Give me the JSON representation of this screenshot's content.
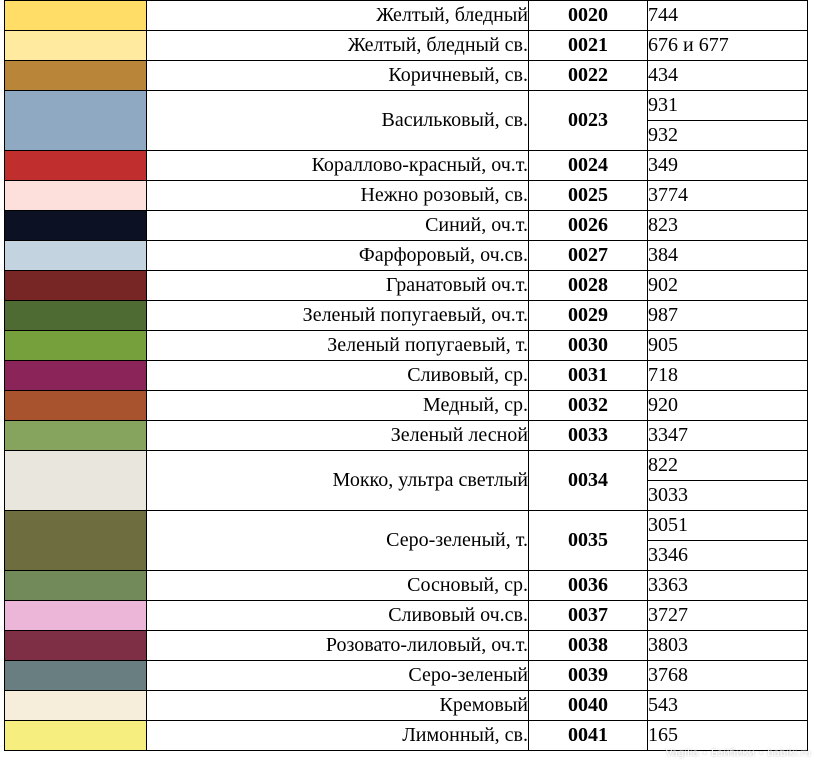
{
  "rows": [
    {
      "name": "Желтый, бледный",
      "code": "0020",
      "dmc": [
        "744"
      ],
      "color": "#ffdd66"
    },
    {
      "name": "Желтый, бледный св.",
      "code": "0021",
      "dmc": [
        "676 и 677"
      ],
      "color": "#ffeaa0"
    },
    {
      "name": "Коричневый, св.",
      "code": "0022",
      "dmc": [
        "434"
      ],
      "color": "#b88539"
    },
    {
      "name": "Васильковый, св.",
      "code": "0023",
      "dmc": [
        "931",
        "932"
      ],
      "color": "#8fa9c2"
    },
    {
      "name": "Кораллово-красный, оч.т.",
      "code": "0024",
      "dmc": [
        "349"
      ],
      "color": "#c02e2e"
    },
    {
      "name": "Нежно розовый, св.",
      "code": "0025",
      "dmc": [
        "3774"
      ],
      "color": "#fde0dc"
    },
    {
      "name": "Синий, оч.т.",
      "code": "0026",
      "dmc": [
        "823"
      ],
      "color": "#0c1124"
    },
    {
      "name": "Фарфоровый, оч.св.",
      "code": "0027",
      "dmc": [
        "384"
      ],
      "color": "#c3d4e0"
    },
    {
      "name": "Гранатовый оч.т.",
      "code": "0028",
      "dmc": [
        "902"
      ],
      "color": "#772625"
    },
    {
      "name": "Зеленый попугаевый, оч.т.",
      "code": "0029",
      "dmc": [
        "987"
      ],
      "color": "#4f6b34"
    },
    {
      "name": "Зеленый попугаевый, т.",
      "code": "0030",
      "dmc": [
        "905"
      ],
      "color": "#75a03c"
    },
    {
      "name": "Сливовый, ср.",
      "code": "0031",
      "dmc": [
        "718"
      ],
      "color": "#8b2559"
    },
    {
      "name": "Медный, ср.",
      "code": "0032",
      "dmc": [
        "920"
      ],
      "color": "#a8522e"
    },
    {
      "name": "Зеленый лесной",
      "code": "0033",
      "dmc": [
        "3347"
      ],
      "color": "#87a45e"
    },
    {
      "name": "Мокко, ультра светлый",
      "code": "0034",
      "dmc": [
        "822",
        "3033"
      ],
      "color": "#e9e6de"
    },
    {
      "name": "Серо-зеленый, т.",
      "code": "0035",
      "dmc": [
        "3051",
        "3346"
      ],
      "color": "#6e6d40"
    },
    {
      "name": "Сосновый, ср.",
      "code": "0036",
      "dmc": [
        "3363"
      ],
      "color": "#728a5a"
    },
    {
      "name": "Сливовый оч.св.",
      "code": "0037",
      "dmc": [
        "3727"
      ],
      "color": "#ebb6d8"
    },
    {
      "name": "Розовато-лиловый, оч.т.",
      "code": "0038",
      "dmc": [
        "3803"
      ],
      "color": "#7e2f45"
    },
    {
      "name": "Серо-зеленый",
      "code": "0039",
      "dmc": [
        "3768"
      ],
      "color": "#697e80"
    },
    {
      "name": "Кремовый",
      "code": "0040",
      "dmc": [
        "543"
      ],
      "color": "#f7eddb"
    },
    {
      "name": "Лимонный, св.",
      "code": "0041",
      "dmc": [
        "165"
      ],
      "color": "#f6ee7e"
    }
  ],
  "watermark": "Vagilia • Бэйбики • babiki.ru"
}
